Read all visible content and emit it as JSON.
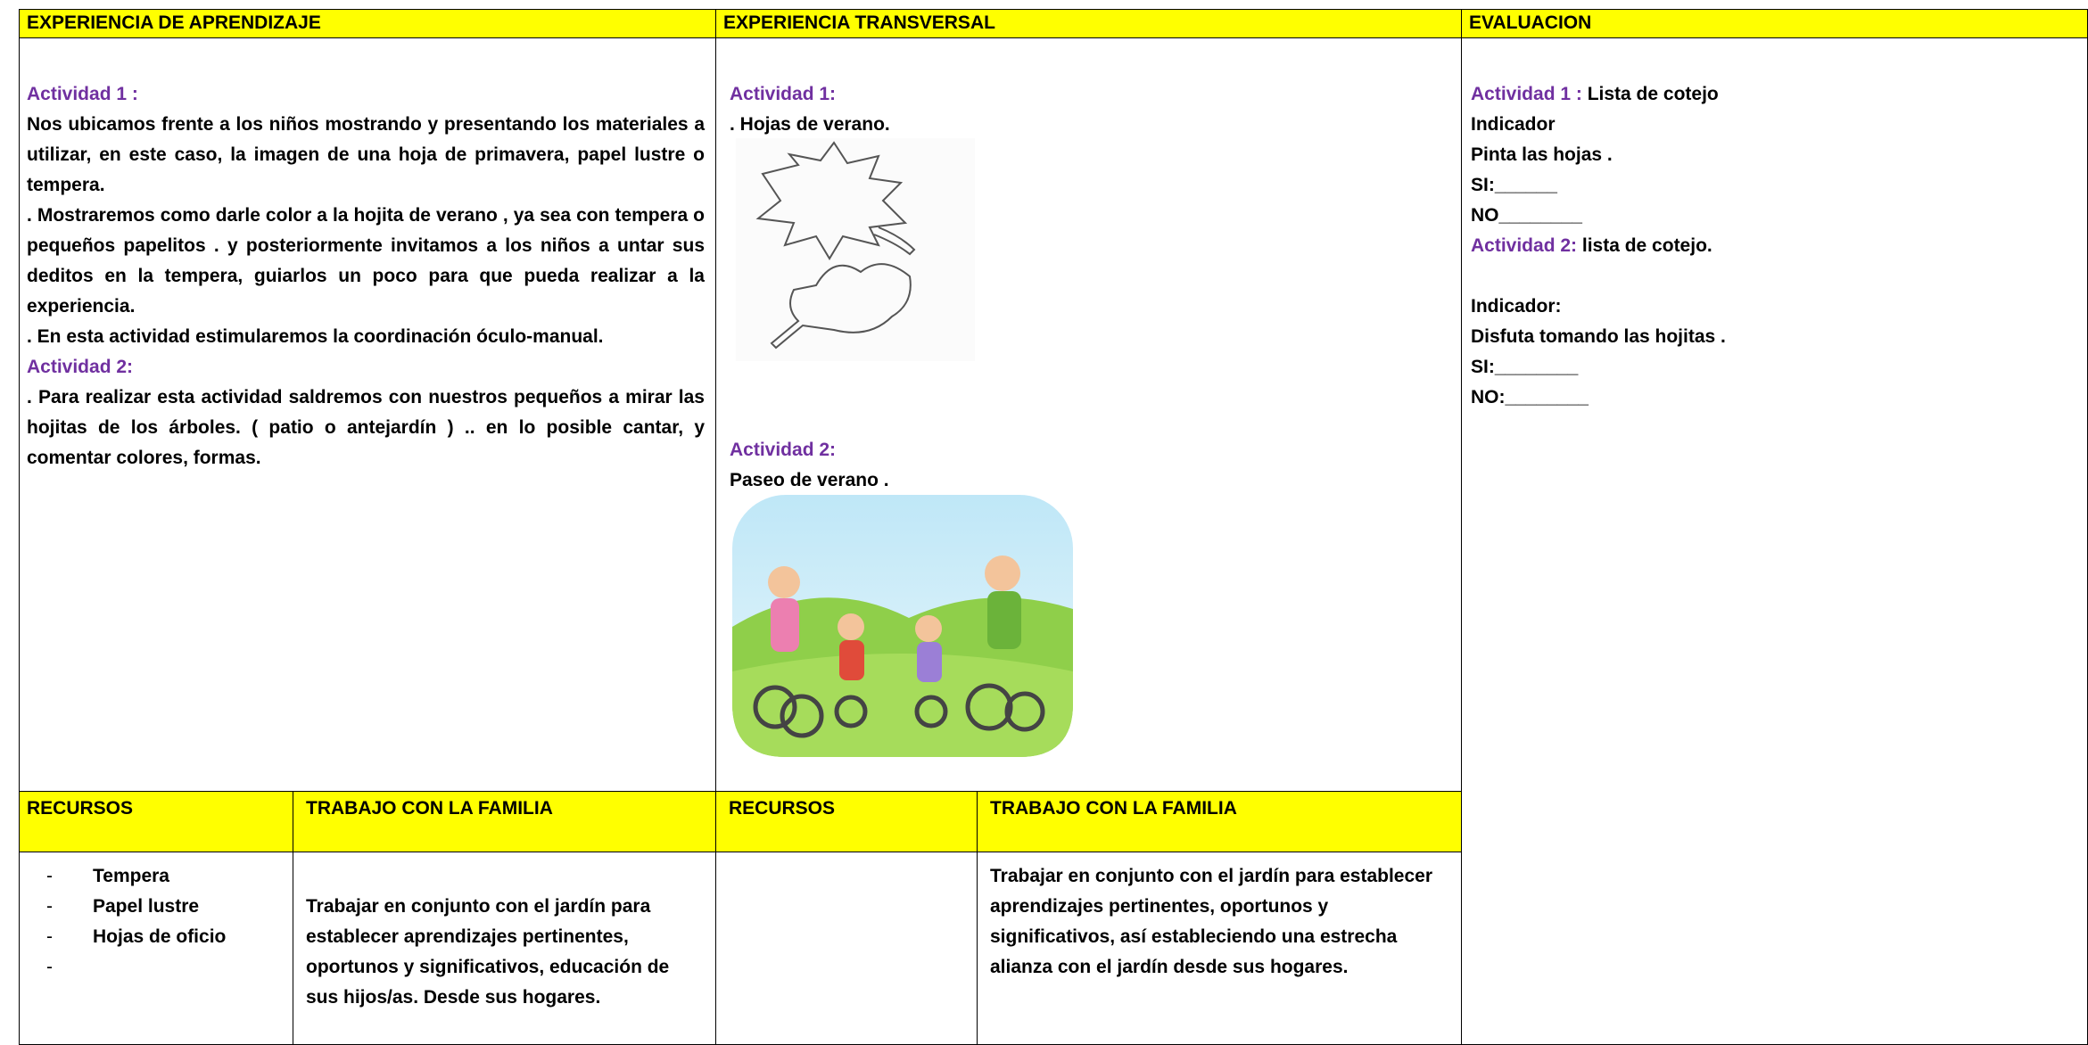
{
  "headers": {
    "learning": "EXPERIENCIA DE APRENDIZAJE",
    "transversal": "EXPERIENCIA TRANSVERSAL",
    "evaluation": "EVALUACION"
  },
  "learning": {
    "activity1_title": "Actividad 1 :",
    "activity1_paragraphs": [
      "Nos ubicamos frente a los niños mostrando y presentando los materiales a utilizar, en este caso, la imagen de una hoja de primavera, papel lustre o tempera.",
      ". Mostraremos como darle color a la hojita de verano , ya sea con tempera o pequeños papelitos . y posteriormente invitamos a los niños a untar sus deditos en la tempera, guiarlos un poco para que pueda realizar a la experiencia.",
      ". En esta actividad estimularemos la coordinación óculo-manual."
    ],
    "activity2_title": "Actividad 2:",
    "activity2_paragraphs": [
      ". Para realizar esta actividad saldremos con nuestros pequeños a mirar las hojitas  de los árboles. ( patio o antejardín ) .. en lo posible cantar, y comentar  colores, formas."
    ]
  },
  "transversal": {
    "activity1_title": "Actividad 1:",
    "activity1_text": ". Hojas de verano.",
    "activity2_title": "Actividad 2:",
    "activity2_text": "Paseo de verano  ."
  },
  "evaluation": {
    "activity1_title": "Actividad 1 :",
    "activity1_tool": " Lista de cotejo",
    "lines1": [
      "Indicador",
      "Pinta las hojas .",
      "SI:______",
      "NO________"
    ],
    "activity2_title": "Actividad 2:",
    "activity2_tool": " lista de cotejo.",
    "lines2": [
      "Indicador:",
      "Disfuta tomando las hojitas .",
      "SI:________",
      "NO:________"
    ]
  },
  "bottom": {
    "resources_header_1": "RECURSOS",
    "family_header_1": "TRABAJO CON LA FAMILIA",
    "resources_header_2": "RECURSOS",
    "family_header_2": "TRABAJO CON LA FAMILIA",
    "resources_1": [
      "Tempera",
      "Papel lustre",
      "Hojas de oficio"
    ],
    "family_1": "Trabajar en conjunto con el jardín para establecer aprendizajes pertinentes, oportunos y significativos, educación de sus hijos/as. Desde sus hogares.",
    "family_2": "Trabajar en conjunto con el jardín para establecer aprendizajes pertinentes, oportunos y significativos, así estableciendo una estrecha alianza con el jardín desde sus hogares."
  }
}
